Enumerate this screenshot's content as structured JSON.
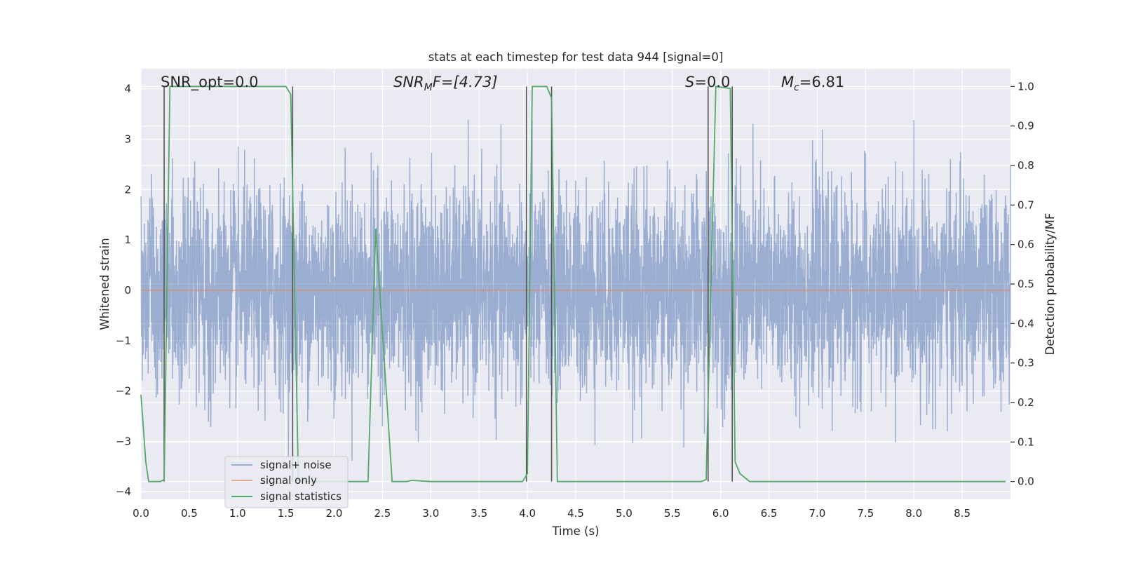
{
  "chart_data": {
    "type": "line",
    "title": "stats at each timestep for test data 944 [signal=0]",
    "xlabel": "Time (s)",
    "ylabel": "Whitened strain",
    "y2label": "Detection probability/MF",
    "xlim": [
      0,
      9.0
    ],
    "ylim": [
      -4.15,
      4.4
    ],
    "y2lim": [
      -0.045,
      1.045
    ],
    "x_ticks": [
      "0.0",
      "0.5",
      "1.0",
      "1.5",
      "2.0",
      "2.5",
      "3.0",
      "3.5",
      "4.0",
      "4.5",
      "5.0",
      "5.5",
      "6.0",
      "6.5",
      "7.0",
      "7.5",
      "8.0",
      "8.5"
    ],
    "y_ticks": [
      "4",
      "3",
      "2",
      "1",
      "0",
      "−1",
      "−2",
      "−3",
      "−4"
    ],
    "y2_ticks": [
      "1.0",
      "0.9",
      "0.8",
      "0.7",
      "0.6",
      "0.5",
      "0.4",
      "0.3",
      "0.2",
      "0.1",
      "0.0"
    ],
    "annotations": {
      "snr_opt": "SNR_opt=0.0",
      "snr_mf_base": "SNR",
      "snr_mf_sub": "M",
      "snr_mf_rest": "F=[4.73]",
      "s_italic": "S",
      "s_rest": "=0.0",
      "mc_base": "M",
      "mc_sub": "c",
      "mc_rest": "=6.81"
    },
    "legend": {
      "placement": "lower-left",
      "entries": [
        "signal+ noise",
        "signal only",
        "signal statistics"
      ]
    },
    "series": [
      {
        "name": "signal+ noise",
        "color": "#4c72b0",
        "description_of_values": "white noise with std about 1.0, range approximately -3.7 to 3.4 over 0-9 s",
        "peak_max": 3.38,
        "peak_min": -3.65
      },
      {
        "name": "signal only",
        "color": "#dd8452",
        "x": [
          0,
          9.0
        ],
        "y": [
          0,
          0
        ]
      },
      {
        "name": "signal statistics",
        "color": "#55a868",
        "x": [
          0.0,
          0.05,
          0.08,
          0.2,
          0.24,
          0.3,
          1.5,
          1.55,
          1.63,
          1.7,
          1.75,
          2.0,
          2.2,
          2.35,
          2.43,
          2.6,
          2.75,
          2.8,
          3.0,
          3.5,
          3.95,
          4.0,
          4.05,
          4.2,
          4.25,
          4.31,
          5.0,
          5.8,
          5.85,
          5.95,
          6.1,
          6.15,
          6.2,
          6.25,
          6.3,
          6.4,
          7.0,
          8.0,
          8.95
        ],
        "y": [
          0.22,
          0.05,
          0.0,
          0.0,
          0.005,
          1.0,
          1.0,
          0.98,
          0.0,
          0.0,
          0.0,
          0.0,
          0.0,
          0.0,
          0.64,
          0.0,
          0.0,
          0.003,
          0.0,
          0.0,
          0.0,
          0.02,
          1.0,
          1.0,
          0.97,
          0.0,
          0.0,
          0.0,
          0.005,
          1.0,
          0.995,
          0.05,
          0.02,
          0.01,
          0.0,
          0.0,
          0.0,
          0.0,
          0.0
        ]
      }
    ],
    "vertical_lines_x": [
      0.24,
      1.57,
      3.99,
      4.25,
      5.87,
      6.12
    ],
    "colors": {
      "plot_background": "#eaeaf2",
      "grid": "#ffffff",
      "vlines": "#555555"
    }
  }
}
